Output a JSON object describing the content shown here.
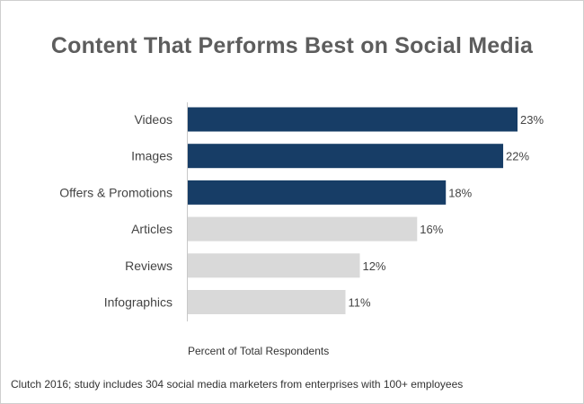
{
  "chart_data": {
    "type": "bar",
    "orientation": "horizontal",
    "title": "Content That Performs Best on Social Media",
    "xlabel": "Percent of Total Respondents",
    "ylabel": "",
    "categories": [
      "Videos",
      "Images",
      "Offers & Promotions",
      "Articles",
      "Reviews",
      "Infographics"
    ],
    "values": [
      23,
      22,
      18,
      16,
      12,
      11
    ],
    "value_labels": [
      "23%",
      "22%",
      "18%",
      "16%",
      "12%",
      "11%"
    ],
    "highlighted": [
      true,
      true,
      true,
      false,
      false,
      false
    ],
    "xlim": [
      0,
      25
    ],
    "grid": false,
    "legend": "none",
    "source_note": "Clutch 2016; study includes 304 social media marketers from enterprises with 100+ employees"
  },
  "colors": {
    "highlight": "#173d66",
    "muted": "#d9d9d9",
    "axis": "#c8c8c8"
  }
}
